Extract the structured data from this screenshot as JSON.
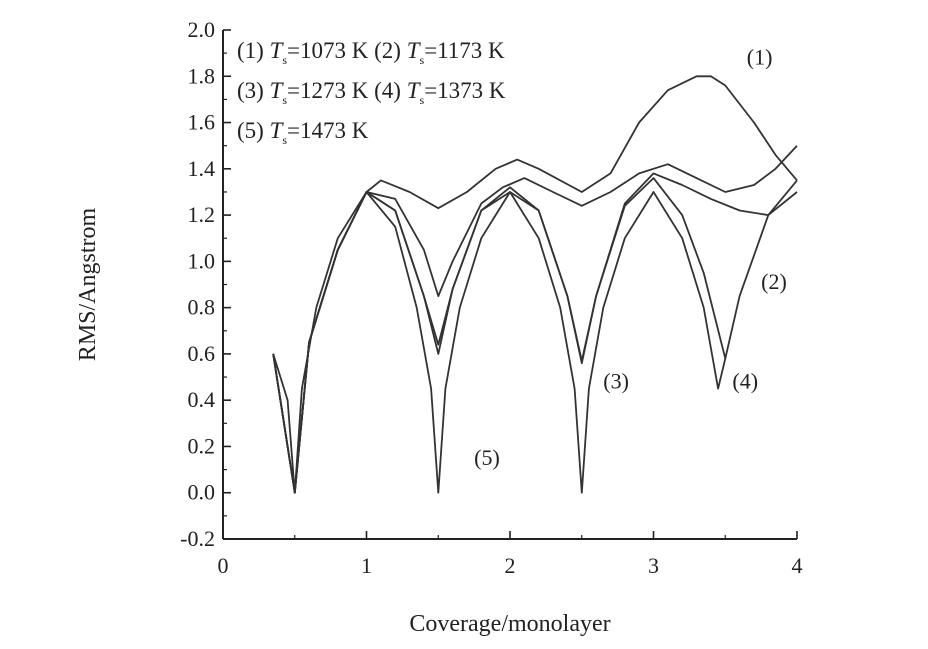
{
  "chart_data": {
    "type": "line",
    "xlabel": "Coverage/monolayer",
    "ylabel": "RMS/Angstrom",
    "xlim": [
      0,
      4
    ],
    "ylim": [
      -0.2,
      2.0
    ],
    "xticks": [
      "0",
      "1",
      "2",
      "3",
      "4"
    ],
    "yticks": [
      "-0.2",
      "0.0",
      "0.2",
      "0.4",
      "0.6",
      "0.8",
      "1.0",
      "1.2",
      "1.4",
      "1.6",
      "1.8",
      "2.0"
    ],
    "legend": [
      {
        "tag": "(1)",
        "symbol": "T",
        "sub": "s",
        "value": "=1073 K"
      },
      {
        "tag": "(2)",
        "symbol": "T",
        "sub": "s",
        "value": "=1173 K"
      },
      {
        "tag": "(3)",
        "symbol": "T",
        "sub": "s",
        "value": "=1273 K"
      },
      {
        "tag": "(4)",
        "symbol": "T",
        "sub": "s",
        "value": "=1373 K"
      },
      {
        "tag": "(5)",
        "symbol": "T",
        "sub": "s",
        "value": "=1473 K"
      }
    ],
    "series": [
      {
        "name": "(1)",
        "x": [
          0.35,
          0.5,
          0.6,
          0.8,
          1.0,
          1.1,
          1.3,
          1.5,
          1.7,
          1.9,
          2.05,
          2.2,
          2.5,
          2.7,
          2.9,
          3.1,
          3.3,
          3.4,
          3.5,
          3.7,
          3.85,
          4.0
        ],
        "y": [
          0.6,
          0.0,
          0.65,
          1.05,
          1.3,
          1.35,
          1.3,
          1.23,
          1.3,
          1.4,
          1.44,
          1.4,
          1.3,
          1.38,
          1.6,
          1.74,
          1.8,
          1.8,
          1.76,
          1.6,
          1.46,
          1.35
        ]
      },
      {
        "name": "(2)",
        "x": [
          0.35,
          0.5,
          0.6,
          0.8,
          1.0,
          1.2,
          1.4,
          1.5,
          1.6,
          1.8,
          1.95,
          2.1,
          2.3,
          2.5,
          2.7,
          2.9,
          3.1,
          3.3,
          3.5,
          3.7,
          3.85,
          4.0
        ],
        "y": [
          0.6,
          0.0,
          0.65,
          1.05,
          1.3,
          1.27,
          1.05,
          0.85,
          1.0,
          1.25,
          1.32,
          1.36,
          1.3,
          1.24,
          1.3,
          1.38,
          1.42,
          1.36,
          1.3,
          1.33,
          1.4,
          1.5
        ]
      },
      {
        "name": "(3)",
        "x": [
          0.35,
          0.5,
          0.6,
          0.8,
          1.0,
          1.2,
          1.4,
          1.5,
          1.6,
          1.8,
          2.0,
          2.2,
          2.4,
          2.5,
          2.6,
          2.8,
          3.0,
          3.2,
          3.4,
          3.6,
          3.8,
          4.0
        ],
        "y": [
          0.6,
          0.0,
          0.65,
          1.05,
          1.3,
          1.22,
          0.85,
          0.64,
          0.88,
          1.22,
          1.32,
          1.22,
          0.85,
          0.57,
          0.85,
          1.25,
          1.38,
          1.33,
          1.27,
          1.22,
          1.2,
          1.3
        ]
      },
      {
        "name": "(4)",
        "x": [
          0.35,
          0.5,
          0.6,
          0.8,
          1.0,
          1.2,
          1.4,
          1.5,
          1.6,
          1.8,
          2.0,
          2.2,
          2.4,
          2.5,
          2.6,
          2.8,
          3.0,
          3.2,
          3.35,
          3.5,
          3.6,
          3.8,
          4.0
        ],
        "y": [
          0.6,
          0.0,
          0.65,
          1.05,
          1.3,
          1.22,
          0.85,
          0.6,
          0.88,
          1.22,
          1.3,
          1.22,
          0.85,
          0.56,
          0.85,
          1.24,
          1.36,
          1.2,
          0.95,
          0.58,
          0.85,
          1.2,
          1.35
        ]
      },
      {
        "name": "(5)",
        "x": [
          0.35,
          0.45,
          0.5,
          0.55,
          0.65,
          0.8,
          1.0,
          1.2,
          1.35,
          1.45,
          1.5,
          1.55,
          1.65,
          1.8,
          2.0,
          2.2,
          2.35,
          2.45,
          2.5,
          2.55,
          2.65,
          2.8,
          3.0,
          3.2,
          3.35,
          3.45,
          3.5
        ],
        "y": [
          0.6,
          0.4,
          0.0,
          0.45,
          0.8,
          1.1,
          1.3,
          1.15,
          0.8,
          0.45,
          0.0,
          0.45,
          0.8,
          1.1,
          1.3,
          1.1,
          0.8,
          0.45,
          0.0,
          0.45,
          0.8,
          1.1,
          1.3,
          1.1,
          0.8,
          0.45,
          0.58
        ]
      }
    ],
    "annotations": [
      {
        "text": "(1)",
        "at": [
          3.65,
          1.85
        ]
      },
      {
        "text": "(2)",
        "at": [
          3.75,
          0.88
        ]
      },
      {
        "text": "(3)",
        "at": [
          2.65,
          0.45
        ]
      },
      {
        "text": "(4)",
        "at": [
          3.55,
          0.45
        ]
      },
      {
        "text": "(5)",
        "at": [
          1.75,
          0.12
        ]
      }
    ],
    "grid": false
  }
}
